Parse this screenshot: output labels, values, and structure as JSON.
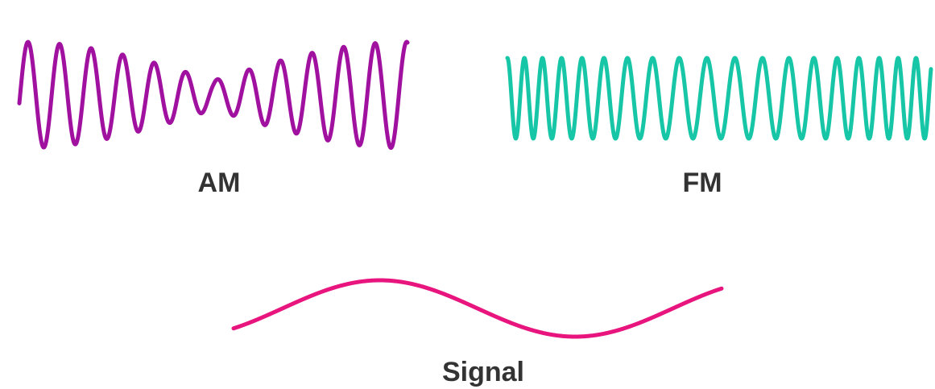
{
  "colors": {
    "am": "#a0119f",
    "fm": "#17c6a6",
    "signal": "#e8157f",
    "label": "#333333"
  },
  "labels": {
    "am": "AM",
    "fm": "FM",
    "signal": "Signal"
  }
}
